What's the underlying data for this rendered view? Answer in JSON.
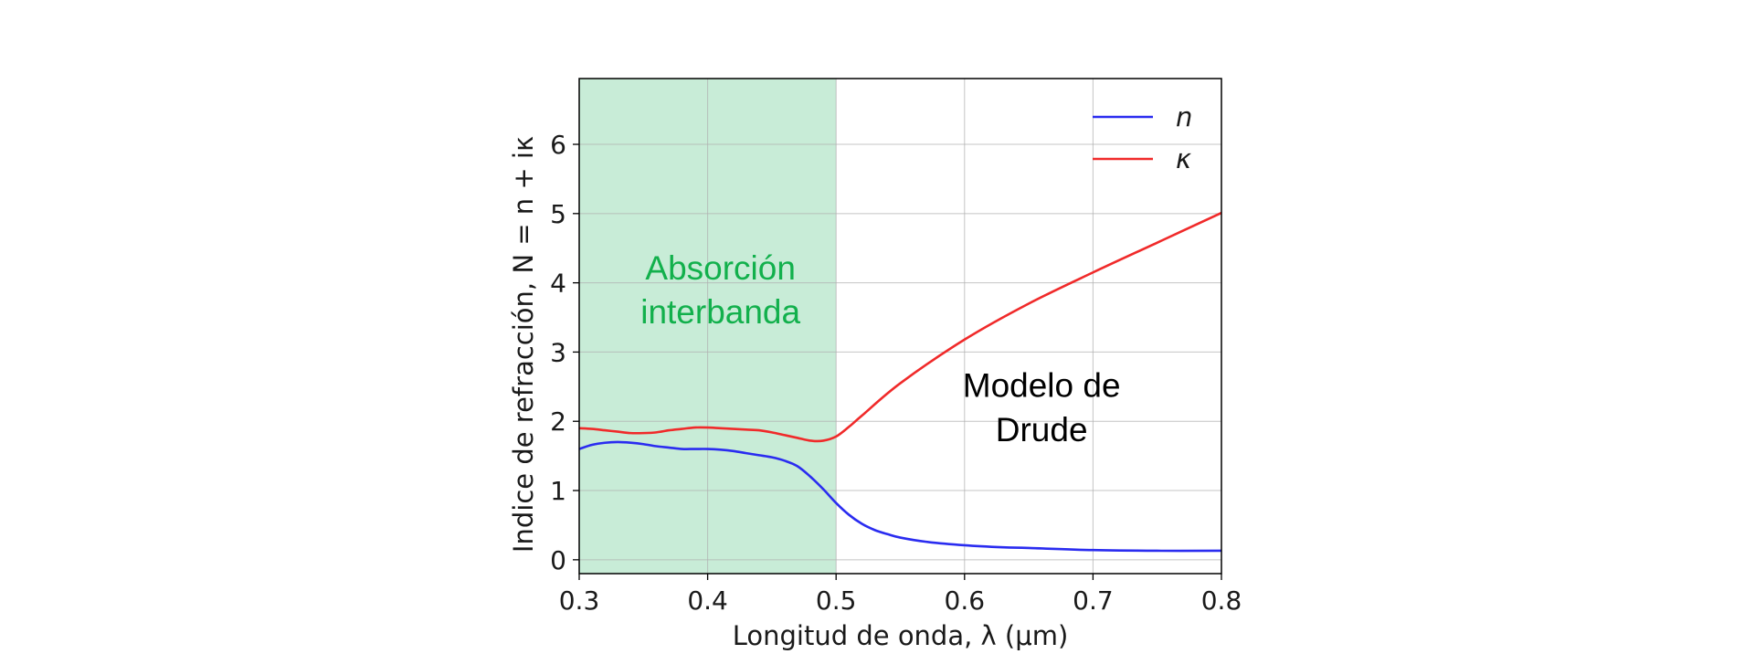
{
  "chart_data": {
    "type": "line",
    "xlabel": "Longitud de onda, λ (μm)",
    "ylabel": "Indice de refracción, N = n + iκ",
    "xlim": [
      0.3,
      0.8
    ],
    "ylim": [
      -0.2,
      6.95
    ],
    "xticks": [
      "0.3",
      "0.4",
      "0.5",
      "0.6",
      "0.7",
      "0.8"
    ],
    "yticks": [
      "0",
      "1",
      "2",
      "3",
      "4",
      "5",
      "6"
    ],
    "grid": true,
    "legend_position": "top-right",
    "shaded_region": {
      "x0": 0.3,
      "x1": 0.5,
      "color": "#c8ecd7"
    },
    "annotations": [
      {
        "lines": [
          "Absorción",
          "interbanda"
        ],
        "x": 0.41,
        "y": 4.05,
        "color": "#12b04c"
      },
      {
        "lines": [
          "Modelo de",
          "Drude"
        ],
        "x": 0.66,
        "y": 2.35,
        "color": "#000000"
      }
    ],
    "series": [
      {
        "name": "n",
        "color": "#2a2cf0",
        "x": [
          0.3,
          0.31,
          0.32,
          0.33,
          0.34,
          0.35,
          0.36,
          0.37,
          0.38,
          0.39,
          0.4,
          0.41,
          0.42,
          0.43,
          0.44,
          0.45,
          0.46,
          0.47,
          0.48,
          0.49,
          0.5,
          0.51,
          0.52,
          0.53,
          0.54,
          0.55,
          0.57,
          0.6,
          0.63,
          0.65,
          0.7,
          0.75,
          0.8
        ],
        "y": [
          1.6,
          1.66,
          1.69,
          1.7,
          1.69,
          1.67,
          1.64,
          1.62,
          1.6,
          1.6,
          1.6,
          1.59,
          1.57,
          1.54,
          1.51,
          1.48,
          1.43,
          1.35,
          1.2,
          1.02,
          0.82,
          0.65,
          0.52,
          0.43,
          0.37,
          0.32,
          0.26,
          0.21,
          0.18,
          0.17,
          0.14,
          0.13,
          0.13
        ]
      },
      {
        "name": "κ",
        "color": "#f02a2a",
        "x": [
          0.3,
          0.31,
          0.32,
          0.33,
          0.34,
          0.35,
          0.36,
          0.37,
          0.38,
          0.39,
          0.4,
          0.41,
          0.42,
          0.43,
          0.44,
          0.45,
          0.46,
          0.47,
          0.48,
          0.49,
          0.5,
          0.51,
          0.52,
          0.55,
          0.6,
          0.65,
          0.7,
          0.75,
          0.8
        ],
        "y": [
          1.9,
          1.89,
          1.87,
          1.85,
          1.83,
          1.83,
          1.84,
          1.87,
          1.89,
          1.91,
          1.91,
          1.9,
          1.89,
          1.88,
          1.87,
          1.84,
          1.8,
          1.76,
          1.72,
          1.72,
          1.78,
          1.92,
          2.08,
          2.55,
          3.18,
          3.7,
          4.15,
          4.58,
          5.01
        ]
      }
    ]
  }
}
